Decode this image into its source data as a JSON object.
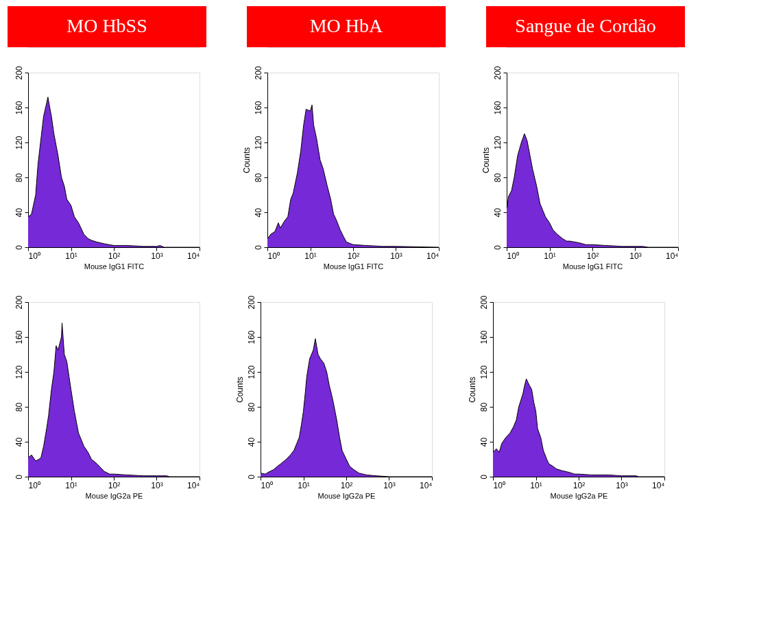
{
  "chart_data": [
    {
      "type": "area",
      "title": "MO HbSS",
      "xlabel": "Mouse IgG1 FITC",
      "log": "x",
      "xlim": [
        1,
        10000
      ],
      "ylim": [
        0,
        200
      ],
      "yticks": [
        0,
        40,
        80,
        120,
        160,
        200
      ],
      "xticks": [
        {
          "value": 1,
          "label": "10⁰"
        },
        {
          "value": 10,
          "label": "10¹"
        },
        {
          "value": 100,
          "label": "10²"
        },
        {
          "value": 1000,
          "label": "10³"
        },
        {
          "value": 10000,
          "label": "10⁴"
        }
      ],
      "x": [
        1,
        1.02,
        1.2,
        1.5,
        1.7,
        2,
        2.3,
        2.7,
        2.9,
        3.2,
        3.5,
        4,
        5,
        6,
        7,
        8,
        10,
        12,
        15,
        20,
        25,
        30,
        40,
        60,
        100,
        200,
        500,
        1000,
        1200,
        1500,
        10000
      ],
      "series": [
        {
          "color": "#7629d6",
          "values": [
            117,
            35,
            38,
            60,
            95,
            125,
            150,
            165,
            172,
            160,
            150,
            130,
            105,
            80,
            70,
            55,
            48,
            35,
            28,
            15,
            10,
            8,
            6,
            4,
            2,
            2,
            1,
            1,
            2,
            0,
            0
          ]
        }
      ]
    },
    {
      "type": "area",
      "title": "MO HbA",
      "xlabel": "Mouse IgG1 FITC",
      "ylabel": "Counts",
      "log": "x",
      "xlim": [
        1,
        10000
      ],
      "ylim": [
        0,
        200
      ],
      "yticks": [
        0,
        40,
        80,
        120,
        160,
        200
      ],
      "xticks": [
        {
          "value": 1,
          "label": "10⁰"
        },
        {
          "value": 10,
          "label": "10¹"
        },
        {
          "value": 100,
          "label": "10²"
        },
        {
          "value": 1000,
          "label": "10³"
        },
        {
          "value": 10000,
          "label": "10⁴"
        }
      ],
      "x": [
        1,
        1.02,
        1.2,
        1.5,
        1.8,
        2,
        2.5,
        3,
        3.5,
        4,
        5,
        6,
        7,
        8,
        10,
        11,
        12,
        14,
        17,
        20,
        25,
        30,
        35,
        40,
        50,
        60,
        70,
        100,
        200,
        500,
        1000,
        10000
      ],
      "series": [
        {
          "color": "#7629d6",
          "values": [
            173,
            10,
            15,
            18,
            28,
            22,
            30,
            35,
            55,
            62,
            85,
            110,
            140,
            158,
            156,
            163,
            140,
            125,
            100,
            90,
            70,
            55,
            38,
            32,
            20,
            12,
            6,
            3,
            2,
            1,
            1,
            0
          ]
        }
      ]
    },
    {
      "type": "area",
      "title": "Sangue de Cordão",
      "xlabel": "Mouse IgG1 FITC",
      "ylabel": "Counts",
      "log": "x",
      "xlim": [
        1,
        10000
      ],
      "ylim": [
        0,
        200
      ],
      "yticks": [
        0,
        40,
        80,
        120,
        160,
        200
      ],
      "xticks": [
        {
          "value": 1,
          "label": "10⁰"
        },
        {
          "value": 10,
          "label": "10¹"
        },
        {
          "value": 100,
          "label": "10²"
        },
        {
          "value": 1000,
          "label": "10³"
        },
        {
          "value": 10000,
          "label": "10⁴"
        }
      ],
      "x": [
        1,
        1.02,
        1.1,
        1.3,
        1.5,
        1.8,
        2.2,
        2.6,
        3,
        3.5,
        4,
        5,
        6,
        7,
        8,
        10,
        12,
        15,
        20,
        25,
        30,
        50,
        70,
        100,
        200,
        500,
        1000,
        1500,
        2000,
        10000
      ],
      "series": [
        {
          "color": "#7629d6",
          "values": [
            122,
            45,
            58,
            65,
            80,
            105,
            120,
            130,
            122,
            105,
            90,
            70,
            50,
            42,
            35,
            28,
            20,
            15,
            10,
            7,
            7,
            5,
            3,
            3,
            2,
            1,
            1,
            1,
            0,
            0
          ]
        }
      ]
    },
    {
      "type": "area",
      "xlabel": "Mouse IgG2a PE",
      "log": "x",
      "xlim": [
        1,
        10000
      ],
      "ylim": [
        0,
        200
      ],
      "yticks": [
        0,
        40,
        80,
        120,
        160,
        200
      ],
      "xticks": [
        {
          "value": 1,
          "label": "10⁰"
        },
        {
          "value": 10,
          "label": "10¹"
        },
        {
          "value": 100,
          "label": "10²"
        },
        {
          "value": 1000,
          "label": "10³"
        },
        {
          "value": 10000,
          "label": "10⁴"
        }
      ],
      "x": [
        1,
        1.02,
        1.2,
        1.5,
        1.8,
        2,
        2.3,
        2.7,
        3,
        3.5,
        4,
        4.5,
        5,
        6,
        6.2,
        7,
        8,
        9,
        10,
        12,
        15,
        20,
        25,
        30,
        40,
        50,
        60,
        80,
        100,
        200,
        500,
        1000,
        1700,
        2000,
        10000
      ],
      "series": [
        {
          "color": "#7629d6",
          "values": [
            107,
            22,
            25,
            18,
            20,
            22,
            35,
            55,
            70,
            100,
            120,
            150,
            145,
            160,
            176,
            140,
            132,
            115,
            100,
            75,
            50,
            35,
            28,
            20,
            15,
            10,
            6,
            3,
            3,
            2,
            1,
            1,
            1,
            0,
            0
          ]
        }
      ]
    },
    {
      "type": "area",
      "xlabel": "Mouse IgG2a PE",
      "ylabel": "Counts",
      "log": "x",
      "xlim": [
        1,
        10000
      ],
      "ylim": [
        0,
        200
      ],
      "yticks": [
        0,
        40,
        80,
        120,
        160,
        200
      ],
      "xticks": [
        {
          "value": 1,
          "label": "10⁰"
        },
        {
          "value": 10,
          "label": "10¹"
        },
        {
          "value": 100,
          "label": "10²"
        },
        {
          "value": 1000,
          "label": "10³"
        },
        {
          "value": 10000,
          "label": "10⁴"
        }
      ],
      "x": [
        1,
        1.02,
        1.3,
        1.5,
        2,
        2.5,
        3,
        4,
        5,
        6,
        7,
        8,
        9,
        10,
        11,
        12,
        14,
        17,
        19,
        22,
        25,
        30,
        35,
        40,
        45,
        50,
        60,
        70,
        80,
        100,
        120,
        150,
        200,
        300,
        500,
        1000,
        10000
      ],
      "series": [
        {
          "color": "#7629d6",
          "values": [
            45,
            4,
            3,
            5,
            8,
            12,
            15,
            20,
            25,
            30,
            38,
            45,
            60,
            75,
            95,
            115,
            135,
            145,
            158,
            140,
            135,
            130,
            120,
            105,
            95,
            85,
            65,
            45,
            30,
            20,
            12,
            8,
            4,
            2,
            1,
            0,
            0
          ]
        }
      ]
    },
    {
      "type": "area",
      "xlabel": "Mouse IgG2a PE",
      "ylabel": "Counts",
      "log": "x",
      "xlim": [
        1,
        10000
      ],
      "ylim": [
        0,
        200
      ],
      "yticks": [
        0,
        40,
        80,
        120,
        160,
        200
      ],
      "xticks": [
        {
          "value": 1,
          "label": "10⁰"
        },
        {
          "value": 10,
          "label": "10¹"
        },
        {
          "value": 100,
          "label": "10²"
        },
        {
          "value": 1000,
          "label": "10³"
        },
        {
          "value": 10000,
          "label": "10⁴"
        }
      ],
      "x": [
        1,
        1.02,
        1.2,
        1.4,
        1.6,
        2,
        2.5,
        3,
        3.5,
        4,
        5,
        5.5,
        6,
        7,
        8,
        9,
        10,
        11,
        13,
        15,
        18,
        20,
        25,
        30,
        40,
        60,
        80,
        100,
        200,
        500,
        1000,
        2200,
        2500,
        10000
      ],
      "series": [
        {
          "color": "#7629d6",
          "values": [
            113,
            28,
            32,
            28,
            38,
            45,
            50,
            57,
            65,
            80,
            95,
            105,
            112,
            105,
            100,
            85,
            75,
            55,
            45,
            30,
            20,
            15,
            12,
            9,
            7,
            5,
            3,
            3,
            2,
            2,
            1,
            1,
            0,
            0
          ]
        }
      ]
    }
  ]
}
